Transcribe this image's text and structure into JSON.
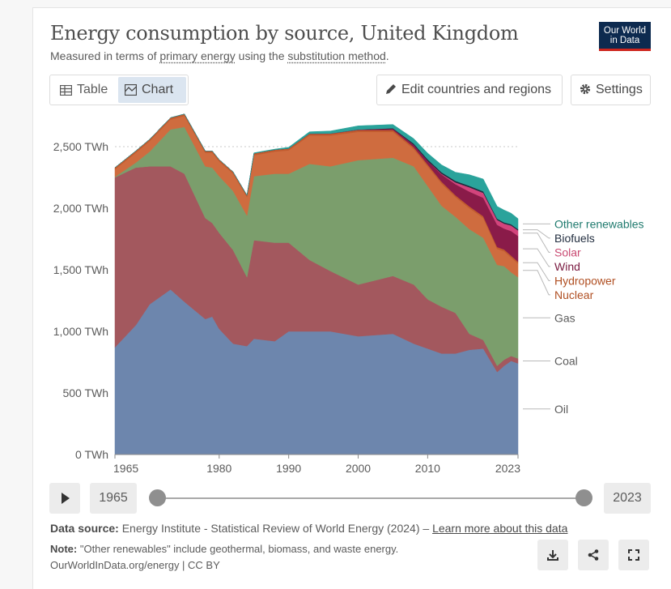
{
  "header": {
    "title": "Energy consumption by source, United Kingdom",
    "subtitle_pre": "Measured in terms of ",
    "subtitle_link1": "primary energy",
    "subtitle_mid": " using the ",
    "subtitle_link2": "substitution method",
    "subtitle_post": ".",
    "logo_line1": "Our World",
    "logo_line2": "in Data"
  },
  "toolbar": {
    "tab_table": "Table",
    "tab_chart": "Chart",
    "edit_button": "Edit countries and regions",
    "settings_button": "Settings"
  },
  "timeline": {
    "start_year": "1965",
    "end_year": "2023"
  },
  "footer": {
    "source_label": "Data source:",
    "source_text": "Energy Institute - Statistical Review of World Energy (2024) –",
    "learn_more": "Learn more about this data",
    "note_label": "Note:",
    "note_text": "\"Other renewables\" include geothermal, biomass, and waste energy.",
    "credit": "OurWorldInData.org/energy | CC BY"
  },
  "chart_data": {
    "type": "area",
    "stacked": true,
    "unit": "TWh",
    "ylim": [
      0,
      2700
    ],
    "yticks": [
      0,
      500,
      1000,
      1500,
      2000,
      2500
    ],
    "ytick_labels": [
      "0 TWh",
      "500 TWh",
      "1,000 TWh",
      "1,500 TWh",
      "2,000 TWh",
      "2,500 TWh"
    ],
    "xlim": [
      1965,
      2023
    ],
    "xticks": [
      1965,
      1980,
      1990,
      2000,
      2010,
      2023
    ],
    "xtick_labels": [
      "1965",
      "1980",
      "1990",
      "2000",
      "2010",
      "2023"
    ],
    "gridline_at": 2500,
    "x": [
      1965,
      1968,
      1970,
      1973,
      1975,
      1978,
      1979,
      1980,
      1982,
      1984,
      1985,
      1988,
      1990,
      1993,
      1996,
      2000,
      2005,
      2008,
      2010,
      2012,
      2014,
      2016,
      2018,
      2020,
      2021,
      2022,
      2023
    ],
    "series": [
      {
        "name": "Oil",
        "color": "#6d86ad",
        "label_color": "#5b5b5b",
        "values": [
          870,
          1050,
          1220,
          1340,
          1240,
          1100,
          1120,
          1020,
          900,
          880,
          940,
          920,
          1000,
          1000,
          1000,
          960,
          980,
          900,
          860,
          820,
          820,
          850,
          860,
          670,
          720,
          760,
          740
        ]
      },
      {
        "name": "Coal",
        "color": "#a3585e",
        "label_color": "#5b5b5b",
        "values": [
          1380,
          1280,
          1120,
          1000,
          1040,
          820,
          760,
          780,
          760,
          560,
          800,
          800,
          720,
          580,
          490,
          420,
          470,
          480,
          400,
          380,
          330,
          130,
          70,
          50,
          50,
          40,
          40
        ]
      },
      {
        "name": "Gas",
        "color": "#7b9e6c",
        "label_color": "#5b5b5b",
        "values": [
          5,
          40,
          120,
          300,
          380,
          420,
          450,
          460,
          480,
          500,
          520,
          560,
          560,
          780,
          850,
          1010,
          960,
          960,
          920,
          820,
          780,
          850,
          830,
          820,
          760,
          680,
          660
        ]
      },
      {
        "name": "Nuclear",
        "color": "#cf6c3f",
        "label_color": "#b04f22",
        "values": [
          60,
          80,
          85,
          80,
          90,
          110,
          120,
          120,
          140,
          150,
          170,
          180,
          190,
          230,
          250,
          230,
          210,
          140,
          160,
          180,
          160,
          170,
          160,
          130,
          120,
          120,
          110
        ]
      },
      {
        "name": "Hydropower",
        "color": "#c25b2e",
        "label_color": "#b04f22",
        "values": [
          15,
          15,
          15,
          15,
          15,
          15,
          15,
          15,
          15,
          15,
          15,
          15,
          15,
          15,
          15,
          15,
          15,
          15,
          15,
          15,
          15,
          15,
          15,
          15,
          15,
          15,
          15
        ]
      },
      {
        "name": "Wind",
        "color": "#8a1b49",
        "label_color": "#7a1a40",
        "values": [
          0,
          0,
          0,
          0,
          0,
          0,
          0,
          0,
          0,
          0,
          0,
          0,
          0,
          1,
          2,
          3,
          10,
          20,
          30,
          60,
          90,
          120,
          150,
          180,
          170,
          200,
          210
        ]
      },
      {
        "name": "Solar",
        "color": "#d2447c",
        "label_color": "#c94a72",
        "values": [
          0,
          0,
          0,
          0,
          0,
          0,
          0,
          0,
          0,
          0,
          0,
          0,
          0,
          0,
          0,
          0,
          0,
          0,
          0,
          5,
          15,
          35,
          40,
          40,
          40,
          45,
          45
        ]
      },
      {
        "name": "Biofuels",
        "color": "#1f2b3d",
        "label_color": "#1f2b3d",
        "values": [
          0,
          0,
          0,
          0,
          0,
          0,
          0,
          0,
          0,
          0,
          0,
          0,
          0,
          0,
          0,
          1,
          5,
          10,
          12,
          12,
          12,
          12,
          12,
          10,
          10,
          10,
          10
        ]
      },
      {
        "name": "Other renewables",
        "color": "#2aa39b",
        "label_color": "#1f7a6e",
        "values": [
          0,
          0,
          0,
          0,
          0,
          0,
          0,
          0,
          0,
          2,
          5,
          5,
          10,
          15,
          20,
          30,
          30,
          40,
          50,
          60,
          70,
          90,
          100,
          100,
          100,
          90,
          85
        ]
      }
    ]
  }
}
